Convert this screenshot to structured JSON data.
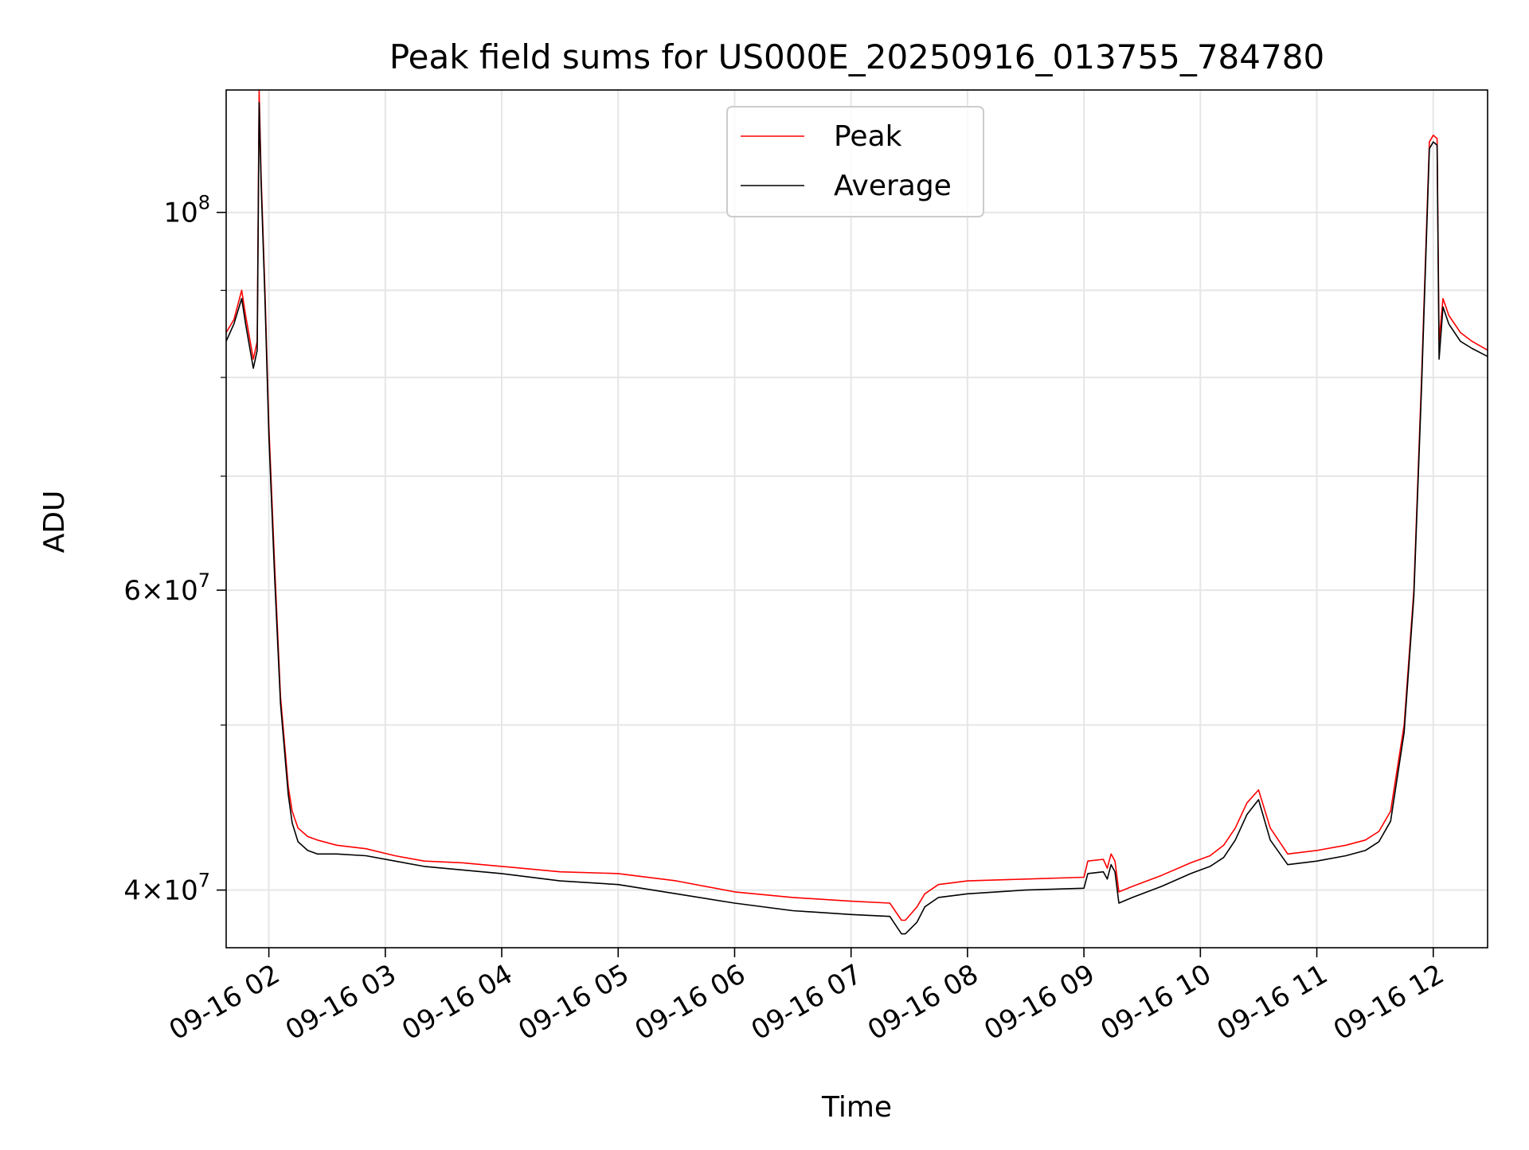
{
  "chart_data": {
    "type": "line",
    "title": "Peak field sums for US000E_20250916_013755_784780",
    "xlabel": "Time",
    "ylabel": "ADU",
    "y_scale": "log",
    "ylim": [
      37000000,
      118000000
    ],
    "xlim": [
      "2025-09-16 01:38",
      "2025-09-16 12:28"
    ],
    "grid": true,
    "legend": {
      "position": "upper center"
    },
    "x_ticks": [
      "09-16 02",
      "09-16 03",
      "09-16 04",
      "09-16 05",
      "09-16 06",
      "09-16 07",
      "09-16 08",
      "09-16 09",
      "09-16 10",
      "09-16 11",
      "09-16 12"
    ],
    "x_tick_values": [
      "2025-09-16 02:00",
      "2025-09-16 03:00",
      "2025-09-16 04:00",
      "2025-09-16 05:00",
      "2025-09-16 06:00",
      "2025-09-16 07:00",
      "2025-09-16 08:00",
      "2025-09-16 09:00",
      "2025-09-16 10:00",
      "2025-09-16 11:00",
      "2025-09-16 12:00"
    ],
    "y_ticks_major": [
      {
        "value": 100000000,
        "base": "10",
        "exp": "8",
        "mant": ""
      },
      {
        "value": 60000000,
        "base": "10",
        "exp": "7",
        "mant": "6"
      },
      {
        "value": 40000000,
        "base": "10",
        "exp": "7",
        "mant": "4"
      }
    ],
    "y_minor_values": [
      90000000,
      80000000,
      70000000,
      50000000
    ],
    "series": [
      {
        "name": "Peak",
        "color": "#ff0000",
        "x": [
          "2025-09-16 01:38",
          "2025-09-16 01:42",
          "2025-09-16 01:46",
          "2025-09-16 01:48",
          "2025-09-16 01:52",
          "2025-09-16 01:54",
          "2025-09-16 01:55",
          "2025-09-16 01:56",
          "2025-09-16 01:58",
          "2025-09-16 02:00",
          "2025-09-16 02:03",
          "2025-09-16 02:06",
          "2025-09-16 02:10",
          "2025-09-16 02:12",
          "2025-09-16 02:15",
          "2025-09-16 02:20",
          "2025-09-16 02:25",
          "2025-09-16 02:35",
          "2025-09-16 02:50",
          "2025-09-16 03:05",
          "2025-09-16 03:20",
          "2025-09-16 03:40",
          "2025-09-16 04:00",
          "2025-09-16 04:30",
          "2025-09-16 05:00",
          "2025-09-16 05:30",
          "2025-09-16 06:00",
          "2025-09-16 06:30",
          "2025-09-16 07:00",
          "2025-09-16 07:20",
          "2025-09-16 07:26",
          "2025-09-16 07:28",
          "2025-09-16 07:34",
          "2025-09-16 07:38",
          "2025-09-16 07:45",
          "2025-09-16 08:00",
          "2025-09-16 08:30",
          "2025-09-16 09:00",
          "2025-09-16 09:02",
          "2025-09-16 09:10",
          "2025-09-16 09:12",
          "2025-09-16 09:14",
          "2025-09-16 09:16",
          "2025-09-16 09:18",
          "2025-09-16 09:25",
          "2025-09-16 09:40",
          "2025-09-16 09:55",
          "2025-09-16 10:05",
          "2025-09-16 10:12",
          "2025-09-16 10:18",
          "2025-09-16 10:24",
          "2025-09-16 10:30",
          "2025-09-16 10:36",
          "2025-09-16 10:45",
          "2025-09-16 11:00",
          "2025-09-16 11:15",
          "2025-09-16 11:25",
          "2025-09-16 11:32",
          "2025-09-16 11:38",
          "2025-09-16 11:45",
          "2025-09-16 11:50",
          "2025-09-16 11:54",
          "2025-09-16 11:58",
          "2025-09-16 12:00",
          "2025-09-16 12:02",
          "2025-09-16 12:03",
          "2025-09-16 12:05",
          "2025-09-16 12:08",
          "2025-09-16 12:14",
          "2025-09-16 12:20",
          "2025-09-16 12:28"
        ],
        "values": [
          85000000,
          86500000,
          90000000,
          87000000,
          82000000,
          84000000,
          118000000,
          105000000,
          90000000,
          75000000,
          62000000,
          52000000,
          46000000,
          44500000,
          43500000,
          43000000,
          42800000,
          42500000,
          42300000,
          41900000,
          41600000,
          41500000,
          41300000,
          41000000,
          40900000,
          40500000,
          39900000,
          39600000,
          39400000,
          39300000,
          38400000,
          38400000,
          39100000,
          39800000,
          40300000,
          40500000,
          40600000,
          40700000,
          41600000,
          41700000,
          41200000,
          42000000,
          41600000,
          39900000,
          40200000,
          40800000,
          41500000,
          41900000,
          42500000,
          43500000,
          45000000,
          45800000,
          43500000,
          42000000,
          42200000,
          42500000,
          42800000,
          43300000,
          44500000,
          50000000,
          60000000,
          80000000,
          110000000,
          111000000,
          110500000,
          84000000,
          89000000,
          87000000,
          85000000,
          84000000,
          83000000
        ]
      },
      {
        "name": "Average",
        "color": "#000000",
        "x": [
          "2025-09-16 01:38",
          "2025-09-16 01:42",
          "2025-09-16 01:46",
          "2025-09-16 01:48",
          "2025-09-16 01:52",
          "2025-09-16 01:54",
          "2025-09-16 01:55",
          "2025-09-16 01:56",
          "2025-09-16 01:58",
          "2025-09-16 02:00",
          "2025-09-16 02:03",
          "2025-09-16 02:06",
          "2025-09-16 02:10",
          "2025-09-16 02:12",
          "2025-09-16 02:15",
          "2025-09-16 02:20",
          "2025-09-16 02:25",
          "2025-09-16 02:35",
          "2025-09-16 02:50",
          "2025-09-16 03:05",
          "2025-09-16 03:20",
          "2025-09-16 03:40",
          "2025-09-16 04:00",
          "2025-09-16 04:30",
          "2025-09-16 05:00",
          "2025-09-16 05:30",
          "2025-09-16 06:00",
          "2025-09-16 06:30",
          "2025-09-16 07:00",
          "2025-09-16 07:20",
          "2025-09-16 07:26",
          "2025-09-16 07:28",
          "2025-09-16 07:34",
          "2025-09-16 07:38",
          "2025-09-16 07:45",
          "2025-09-16 08:00",
          "2025-09-16 08:30",
          "2025-09-16 09:00",
          "2025-09-16 09:02",
          "2025-09-16 09:10",
          "2025-09-16 09:12",
          "2025-09-16 09:14",
          "2025-09-16 09:16",
          "2025-09-16 09:18",
          "2025-09-16 09:25",
          "2025-09-16 09:40",
          "2025-09-16 09:55",
          "2025-09-16 10:05",
          "2025-09-16 10:12",
          "2025-09-16 10:18",
          "2025-09-16 10:24",
          "2025-09-16 10:30",
          "2025-09-16 10:36",
          "2025-09-16 10:45",
          "2025-09-16 11:00",
          "2025-09-16 11:15",
          "2025-09-16 11:25",
          "2025-09-16 11:32",
          "2025-09-16 11:38",
          "2025-09-16 11:45",
          "2025-09-16 11:50",
          "2025-09-16 11:54",
          "2025-09-16 11:58",
          "2025-09-16 12:00",
          "2025-09-16 12:02",
          "2025-09-16 12:03",
          "2025-09-16 12:05",
          "2025-09-16 12:08",
          "2025-09-16 12:14",
          "2025-09-16 12:20",
          "2025-09-16 12:28"
        ],
        "values": [
          84000000,
          86000000,
          89000000,
          86000000,
          81000000,
          83000000,
          116000000,
          104000000,
          89000000,
          74000000,
          61000000,
          51500000,
          45500000,
          43800000,
          42700000,
          42200000,
          42000000,
          42000000,
          41900000,
          41600000,
          41300000,
          41100000,
          40900000,
          40500000,
          40300000,
          39800000,
          39300000,
          38900000,
          38700000,
          38600000,
          37700000,
          37700000,
          38300000,
          39100000,
          39600000,
          39800000,
          40000000,
          40100000,
          40900000,
          41000000,
          40600000,
          41400000,
          41000000,
          39300000,
          39600000,
          40200000,
          40900000,
          41300000,
          41800000,
          42800000,
          44300000,
          45200000,
          42800000,
          41400000,
          41600000,
          41900000,
          42200000,
          42700000,
          43900000,
          49500000,
          59500000,
          79000000,
          109000000,
          110000000,
          109500000,
          82000000,
          88000000,
          86000000,
          84000000,
          83200000,
          82300000
        ]
      }
    ]
  }
}
